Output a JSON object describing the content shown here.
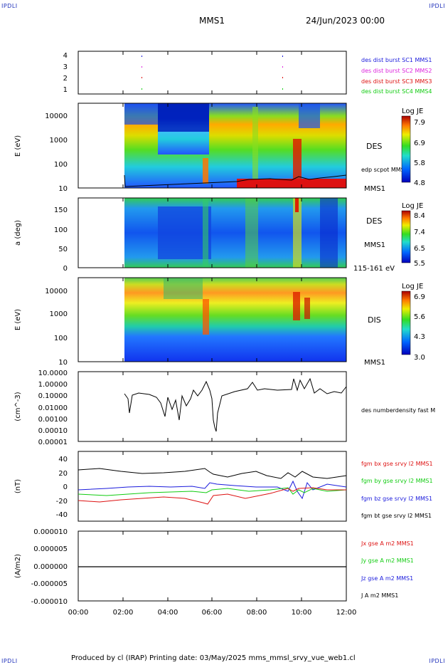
{
  "corners": {
    "tl": "IPDLI",
    "tr": "IPDLI",
    "bl": "IPDLI",
    "br": "IPDLI"
  },
  "header": {
    "title": "MMS1",
    "date": "24/Jun/2023 00:00"
  },
  "footer": {
    "text": "Produced by cl (IRAP)   Printing date: 03/May/2025   mms_mmsl_srvy_vue_web1.cl"
  },
  "colors": {
    "blue": "#1a1adc",
    "magenta": "#dd22dd",
    "red": "#dd1111",
    "green": "#11cc11",
    "black": "#000000"
  },
  "chart_data": [
    {
      "type": "scatter",
      "id": "burst",
      "ylabel": "",
      "ylim": [
        0.6,
        4.4
      ],
      "yticks": [
        "1",
        "2",
        "3",
        "4"
      ],
      "x": [
        "02:50",
        "09:10"
      ],
      "legend": [
        {
          "text": "des dist burst SC1 MMS1",
          "color": "#1a1adc"
        },
        {
          "text": "des dist burst SC2 MMS2",
          "color": "#dd22dd"
        },
        {
          "text": "des dist burst SC3 MMS3",
          "color": "#dd1111"
        },
        {
          "text": "des dist burst SC4 MMS4",
          "color": "#11cc11"
        }
      ]
    },
    {
      "type": "heatmap",
      "id": "des-energy",
      "ylabel": "E (eV)",
      "yscale": "log",
      "yticks": [
        "10000",
        "1000",
        "100",
        "10"
      ],
      "right_labels": [
        "DES",
        "edp scpot MMS1",
        "MMS1"
      ],
      "colorbar": {
        "title": "Log JE",
        "ticks": [
          "7.9",
          "6.9",
          "5.8",
          "4.8"
        ]
      }
    },
    {
      "type": "heatmap",
      "id": "des-pitch",
      "ylabel": "a (deg)",
      "yticks": [
        "150",
        "100",
        "50",
        "0"
      ],
      "right_labels": [
        "DES",
        "MMS1",
        "115-161 eV"
      ],
      "colorbar": {
        "title": "Log JE",
        "ticks": [
          "8.4",
          "7.4",
          "6.5",
          "5.5"
        ]
      }
    },
    {
      "type": "heatmap",
      "id": "dis-energy",
      "ylabel": "E (eV)",
      "yscale": "log",
      "yticks": [
        "10000",
        "1000",
        "100",
        "10"
      ],
      "right_labels": [
        "DIS",
        "MMS1"
      ],
      "colorbar": {
        "title": "Log JE",
        "ticks": [
          "6.9",
          "5.6",
          "4.3",
          "3.0"
        ]
      }
    },
    {
      "type": "line",
      "id": "density",
      "ylabel": "(cm^-3)",
      "yscale": "log",
      "yticks": [
        "10.0000",
        "1.00000",
        "0.10000",
        "0.01000",
        "0.00100",
        "0.00010",
        "0.00001"
      ],
      "series": [
        {
          "name": "des numberdensity fast M",
          "color": "#000000"
        }
      ]
    },
    {
      "type": "line",
      "id": "fgm",
      "ylabel": "(nT)",
      "ylim": [
        -50,
        50
      ],
      "yticks": [
        "40",
        "20",
        "0",
        "-20",
        "-40"
      ],
      "series": [
        {
          "name": "fgm bx gse srvy l2 MMS1",
          "color": "#dd1111"
        },
        {
          "name": "fgm by gse srvy l2 MMS1",
          "color": "#11cc11"
        },
        {
          "name": "fgm bz gse srvy l2 MMS1",
          "color": "#1a1adc"
        },
        {
          "name": "fgm bt gse srvy l2 MMS1",
          "color": "#000000"
        }
      ]
    },
    {
      "type": "line",
      "id": "current",
      "ylabel": "(A/m2)",
      "ylim": [
        -1e-05,
        1e-05
      ],
      "yticks": [
        "0.000010",
        "0.000005",
        "0.000000",
        "-0.000005",
        "-0.000010"
      ],
      "series": [
        {
          "name": "Jx gse A m2 MMS1",
          "color": "#dd1111"
        },
        {
          "name": "Jy gse A m2 MMS1",
          "color": "#11cc11"
        },
        {
          "name": "Jz gse A m2 MMS1",
          "color": "#1a1adc"
        },
        {
          "name": "J A m2 MMS1",
          "color": "#000000"
        }
      ],
      "xticks": [
        "00:00",
        "02:00",
        "04:00",
        "06:00",
        "08:00",
        "10:00",
        "12:00"
      ]
    }
  ]
}
